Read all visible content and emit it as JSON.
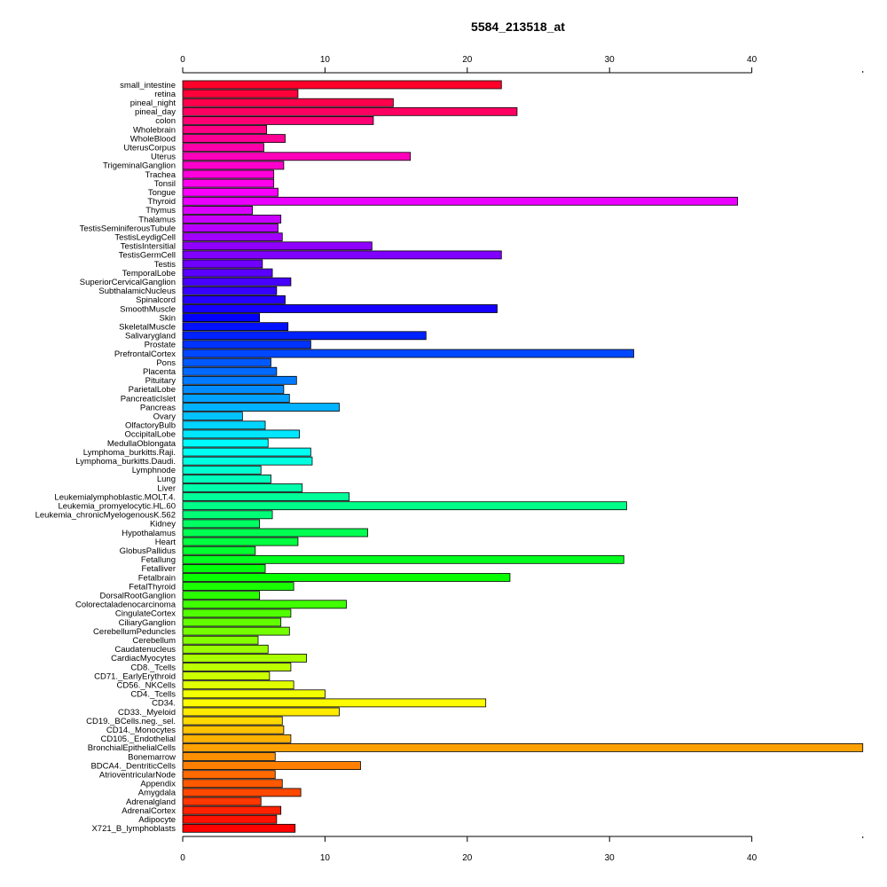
{
  "chart_data": {
    "type": "bar",
    "orientation": "horizontal",
    "title": "5584_213518_at",
    "xlim": [
      0,
      47.8
    ],
    "xticks": [
      0,
      10,
      20,
      30,
      40
    ],
    "axes": [
      "top",
      "bottom"
    ],
    "grid": false,
    "colormap": "rainbow",
    "categories": [
      "small_intestine",
      "retina",
      "pineal_night",
      "pineal_day",
      "colon",
      "Wholebrain",
      "WholeBlood",
      "UterusCorpus",
      "Uterus",
      "TrigeminalGanglion",
      "Trachea",
      "Tonsil",
      "Tongue",
      "Thyroid",
      "Thymus",
      "Thalamus",
      "TestisSeminiferousTubule",
      "TestisLeydigCell",
      "TestisIntersitial",
      "TestisGermCell",
      "Testis",
      "TemporalLobe",
      "SuperiorCervicalGanglion",
      "SubthalamicNucleus",
      "Spinalcord",
      "SmoothMuscle",
      "Skin",
      "SkeletalMuscle",
      "Salivarygland",
      "Prostate",
      "PrefrontalCortex",
      "Pons",
      "Placenta",
      "Pituitary",
      "ParietalLobe",
      "PancreaticIslet",
      "Pancreas",
      "Ovary",
      "OlfactoryBulb",
      "OccipitalLobe",
      "MedullaOblongata",
      "Lymphoma_burkitts.Raji.",
      "Lymphoma_burkitts.Daudi.",
      "Lymphnode",
      "Lung",
      "Liver",
      "Leukemialymphoblastic.MOLT.4.",
      "Leukemia_promyelocytic.HL.60",
      "Leukemia_chronicMyelogenousK.562",
      "Kidney",
      "Hypothalamus",
      "Heart",
      "GlobusPallidus",
      "Fetallung",
      "Fetalliver",
      "Fetalbrain",
      "FetalThyroid",
      "DorsalRootGanglion",
      "Colorectaladenocarcinoma",
      "CingulateCortex",
      "CiliaryGanglion",
      "CerebellumPeduncles",
      "Cerebellum",
      "Caudatenucleus",
      "CardiacMyocytes",
      "CD8._Tcells",
      "CD71._EarlyErythroid",
      "CD56._NKCells",
      "CD4._Tcells",
      "CD34.",
      "CD33._Myeloid",
      "CD19._BCells.neg._sel.",
      "CD14._Monocytes",
      "CD105._Endothelial",
      "BronchialEpithelialCells",
      "Bonemarrow",
      "BDCA4._DentriticCells",
      "AtrioventricularNode",
      "Appendix",
      "Amygdala",
      "Adrenalgland",
      "AdrenalCortex",
      "Adipocyte",
      "X721_B_lymphoblasts"
    ],
    "values": [
      22.4,
      8.1,
      14.8,
      23.5,
      13.4,
      5.9,
      7.2,
      5.7,
      16.0,
      7.1,
      6.4,
      6.4,
      6.7,
      39.0,
      4.9,
      6.9,
      6.7,
      7.0,
      13.3,
      22.4,
      5.6,
      6.3,
      7.6,
      6.6,
      7.2,
      22.1,
      5.4,
      7.4,
      17.1,
      9.0,
      31.7,
      6.2,
      6.6,
      8.0,
      7.1,
      7.5,
      11.0,
      4.2,
      5.8,
      8.2,
      6.0,
      9.0,
      9.1,
      5.5,
      6.2,
      8.4,
      11.7,
      31.2,
      6.3,
      5.4,
      13.0,
      8.1,
      5.1,
      31.0,
      5.8,
      23.0,
      7.8,
      5.4,
      11.5,
      7.6,
      6.9,
      7.5,
      5.3,
      6.0,
      8.7,
      7.6,
      6.1,
      7.8,
      10.0,
      21.3,
      11.0,
      7.0,
      7.1,
      7.6,
      47.8,
      6.5,
      12.5,
      6.5,
      7.0,
      8.3,
      5.5,
      6.9,
      6.6,
      7.9
    ]
  }
}
